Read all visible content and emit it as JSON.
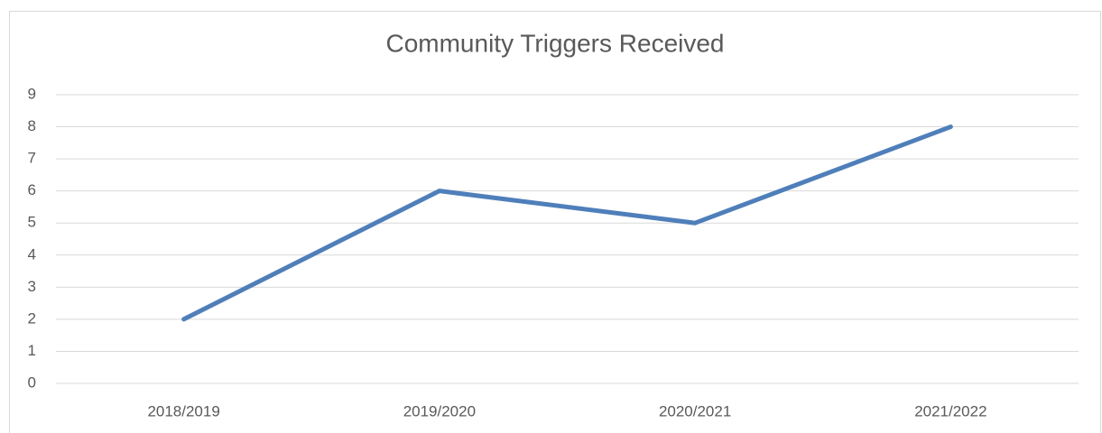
{
  "chart_data": {
    "type": "line",
    "title": "Community Triggers Received",
    "categories": [
      "2018/2019",
      "2019/2020",
      "2020/2021",
      "2021/2022"
    ],
    "values": [
      2,
      6,
      5,
      8
    ],
    "color": "#4f7fba",
    "ylim": [
      0,
      9
    ],
    "yticks": [
      0,
      1,
      2,
      3,
      4,
      5,
      6,
      7,
      8,
      9
    ],
    "grid": true
  }
}
